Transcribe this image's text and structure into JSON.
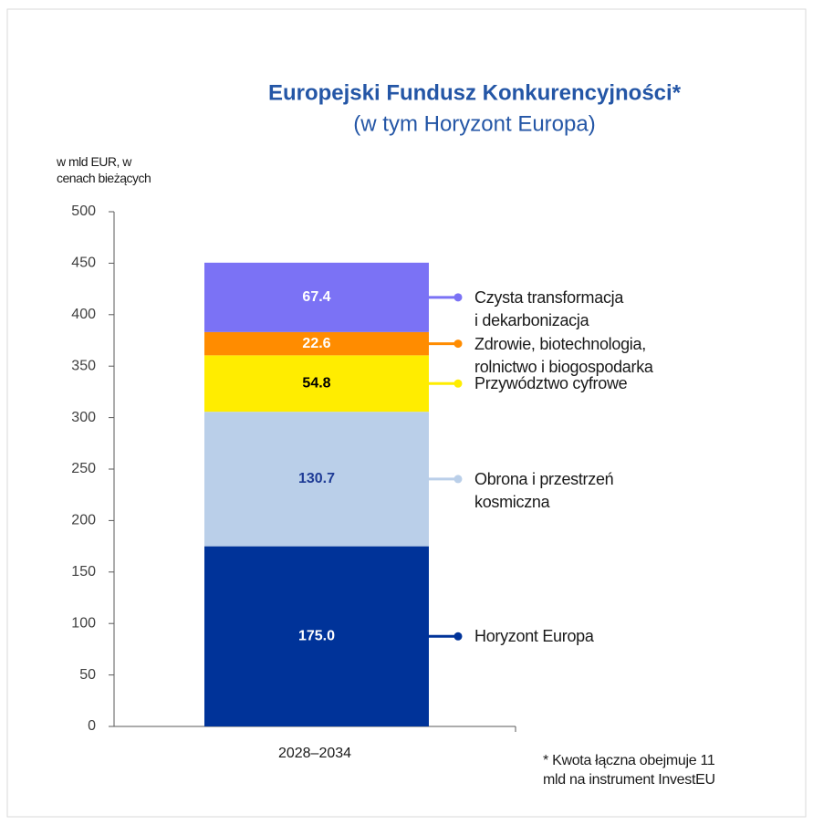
{
  "chart_data": {
    "type": "stacked_bar",
    "title": "Europejski Fundusz Konkurencyjności*",
    "subtitle": "(w tym Horyzont Europa)",
    "y_label": "w mld EUR, w\ncenach bieżących",
    "footnote": "* Kwota łączna obejmuje 11\nmld na instrument InvestEU",
    "categories": [
      "2028–2034"
    ],
    "series": [
      {
        "name": "Horyzont Europa",
        "color": "#003399",
        "label_color": "#ffffff",
        "values": [
          175.0
        ],
        "value_labels": [
          "175.0"
        ]
      },
      {
        "name": "Obrona i przestrzeń\nkosmiczna",
        "color": "#bacfe9",
        "label_color": "#1f3c96",
        "values": [
          130.7
        ],
        "value_labels": [
          "130.7"
        ]
      },
      {
        "name": "Przywództwo cyfrowe",
        "color": "#ffed00",
        "label_color": "#000000",
        "values": [
          54.8
        ],
        "value_labels": [
          "54.8"
        ]
      },
      {
        "name": "Zdrowie, biotechnologia,\nrolnictwo i biogospodarka",
        "color": "#ff8c00",
        "label_color": "#ffffff",
        "values": [
          22.6
        ],
        "value_labels": [
          "22.6"
        ]
      },
      {
        "name": "Czysta transformacja\ni dekarbonizacja",
        "color": "#7b72f5",
        "label_color": "#ffffff",
        "values": [
          67.4
        ],
        "value_labels": [
          "67.4"
        ]
      }
    ],
    "ylim": [
      0,
      500
    ],
    "yticks": [
      0,
      50,
      100,
      150,
      200,
      250,
      300,
      350,
      400,
      450,
      500
    ]
  }
}
